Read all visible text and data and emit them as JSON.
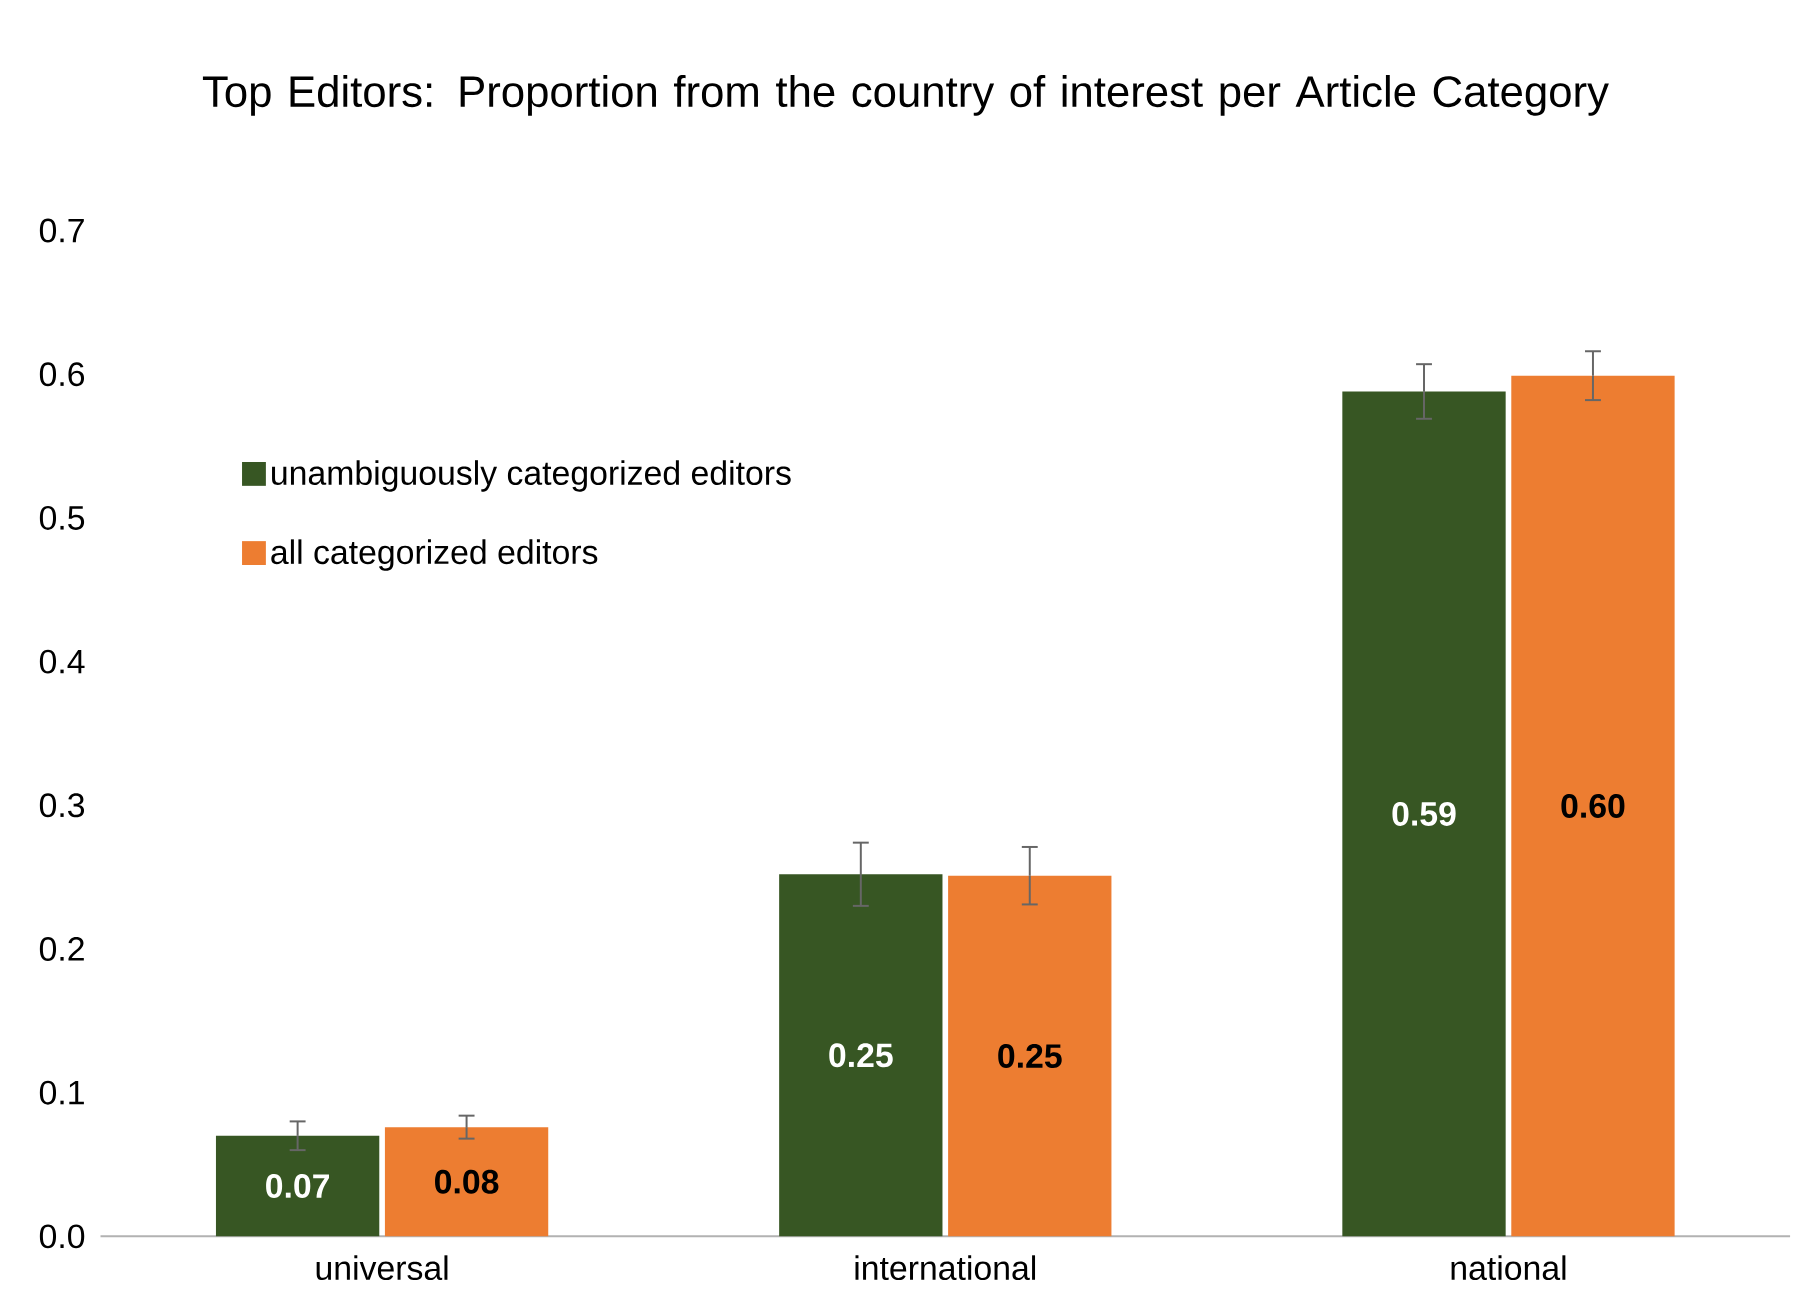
{
  "chart_data": {
    "type": "bar",
    "title": "Top Editors: Proportion from the country of interest per Article Category",
    "categories": [
      "universal",
      "international",
      "national"
    ],
    "series": [
      {
        "name": "unambiguously categorized editors",
        "color": "#375623",
        "values": [
          0.07,
          0.252,
          0.588
        ],
        "errors": [
          0.01,
          0.022,
          0.019
        ],
        "value_labels": [
          "0.07",
          "0.25",
          "0.59"
        ]
      },
      {
        "name": "all categorized editors",
        "color": "#ed7d31",
        "values": [
          0.076,
          0.251,
          0.599
        ],
        "errors": [
          0.008,
          0.02,
          0.017
        ],
        "value_labels": [
          "0.08",
          "0.25",
          "0.60"
        ]
      }
    ],
    "ylim": [
      0,
      0.7
    ],
    "yticks": [
      {
        "value": 0,
        "label": "0.0"
      },
      0.1,
      0.2,
      0.3,
      0.4,
      0.5,
      0.6,
      0.7
    ],
    "grid": false,
    "legend": "left"
  }
}
